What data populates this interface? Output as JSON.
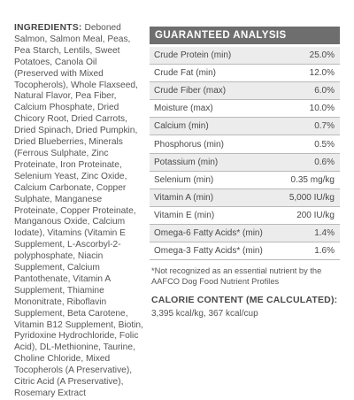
{
  "ingredients": {
    "label": "INGREDIENTS:",
    "text": "Deboned Salmon, Salmon Meal, Peas, Pea Starch, Lentils, Sweet Potatoes, Canola Oil (Preserved with Mixed Tocopherols), Whole Flaxseed, Natural Flavor, Pea Fiber, Calcium Phosphate, Dried Chicory Root, Dried Carrots, Dried Spinach, Dried Pumpkin, Dried Blueberries, Minerals (Ferrous Sulphate, Zinc Proteinate, Iron Proteinate, Selenium Yeast, Zinc Oxide, Calcium Carbonate, Copper Sulphate, Manganese Proteinate, Copper Proteinate, Manganous Oxide, Calcium Iodate), Vitamins (Vitamin E Supplement, L-Ascorbyl-2-polyphosphate, Niacin Supplement, Calcium Pantothenate, Vitamin A Supplement, Thiamine Mononitrate, Riboflavin Supplement, Beta Carotene, Vitamin B12 Supplement, Biotin, Pyridoxine Hydrochloride, Folic Acid), DL-Methionine, Taurine, Choline Chloride, Mixed Tocopherols (A Preservative), Citric Acid (A Preservative), Rosemary Extract"
  },
  "analysis": {
    "title": "GUARANTEED ANALYSIS",
    "rows": [
      {
        "name": "Crude Protein (min)",
        "value": "25.0%"
      },
      {
        "name": "Crude Fat (min)",
        "value": "12.0%"
      },
      {
        "name": "Crude Fiber (max)",
        "value": "6.0%"
      },
      {
        "name": "Moisture (max)",
        "value": "10.0%"
      },
      {
        "name": "Calcium (min)",
        "value": "0.7%"
      },
      {
        "name": "Phosphorus (min)",
        "value": "0.5%"
      },
      {
        "name": "Potassium (min)",
        "value": "0.6%"
      },
      {
        "name": "Selenium (min)",
        "value": "0.35 mg/kg"
      },
      {
        "name": "Vitamin A (min)",
        "value": "5,000 IU/kg"
      },
      {
        "name": "Vitamin E (min)",
        "value": "200 IU/kg"
      },
      {
        "name": "Omega-6 Fatty Acids* (min)",
        "value": "1.4%"
      },
      {
        "name": "Omega-3 Fatty Acids* (min)",
        "value": "1.6%"
      }
    ],
    "footnote": "*Not recognized as an essential nutrient by the AAFCO Dog Food Nutrient Profiles"
  },
  "calorie": {
    "title": "CALORIE CONTENT (ME CALCULATED):",
    "value": "3,395 kcal/kg, 367 kcal/cup"
  }
}
